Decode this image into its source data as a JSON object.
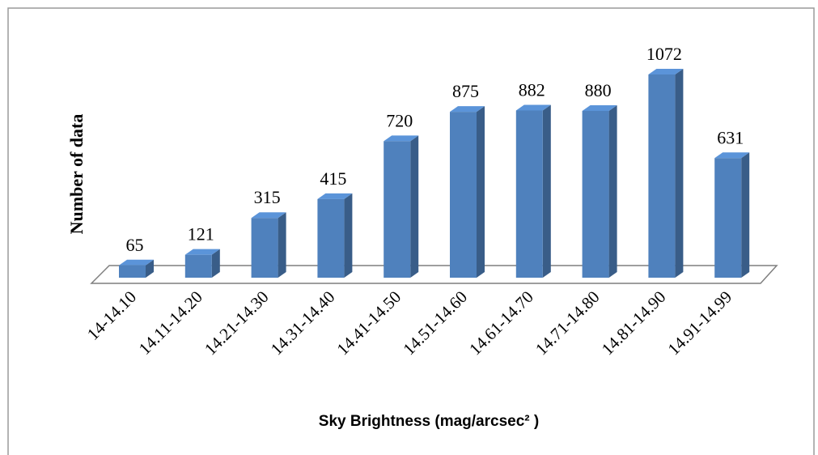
{
  "chart_data": {
    "type": "bar3d",
    "x_label": "Sky Brightness (mag/arcsec² )",
    "y_label": "Number of data",
    "categories": [
      "14-14.10",
      "14.11-14.20",
      "14.21-14.30",
      "14.31-14.40",
      "14.41-14.50",
      "14.51-14.60",
      "14.61-14.70",
      "14.71-14.80",
      "14.81-14.90",
      "14.91-14.99"
    ],
    "values": [
      65,
      121,
      315,
      415,
      720,
      875,
      882,
      880,
      1072,
      631
    ],
    "color": "#4f81bd"
  }
}
